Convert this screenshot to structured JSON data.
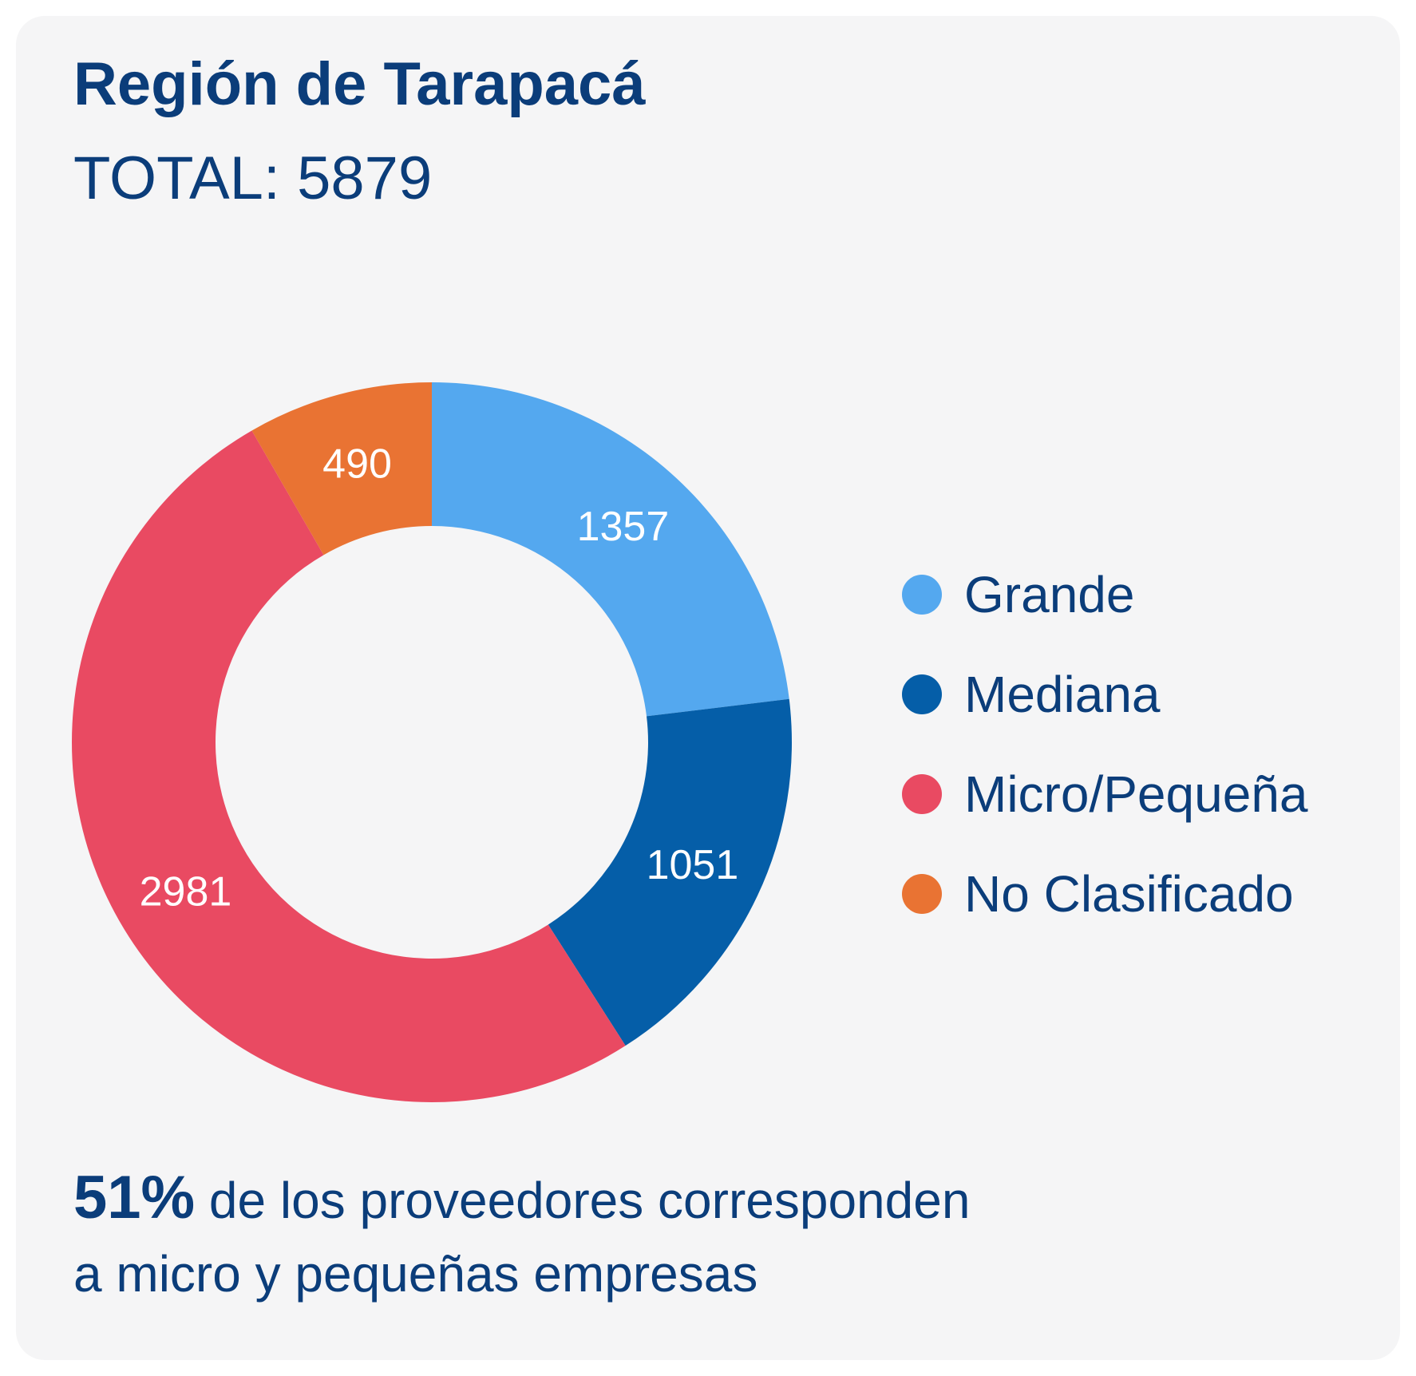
{
  "card": {
    "title": "Región de Tarapacá",
    "total": "TOTAL: 5879"
  },
  "chart_data": {
    "type": "pie",
    "variant": "donut",
    "categories": [
      "Grande",
      "Mediana",
      "Micro/Pequeña",
      "No Clasificado"
    ],
    "values": [
      1357,
      1051,
      2981,
      490
    ],
    "labels": [
      "1357",
      "1051",
      "2981",
      "490"
    ],
    "colors": [
      "#54a8ef",
      "#055ea8",
      "#e94a62",
      "#e97333"
    ],
    "start": "12 o'clock",
    "direction": "clockwise",
    "legend": "right"
  },
  "legend": {
    "items": [
      {
        "label": "Grande",
        "color": "#54a8ef"
      },
      {
        "label": "Mediana",
        "color": "#055ea8"
      },
      {
        "label": "Micro/Pequeña",
        "color": "#e94a62"
      },
      {
        "label": "No Clasificado",
        "color": "#e97333"
      }
    ]
  },
  "footnote": {
    "highlight": "51%",
    "line1": " de los proveedores corresponden",
    "line2": "a micro y pequeñas empresas"
  }
}
